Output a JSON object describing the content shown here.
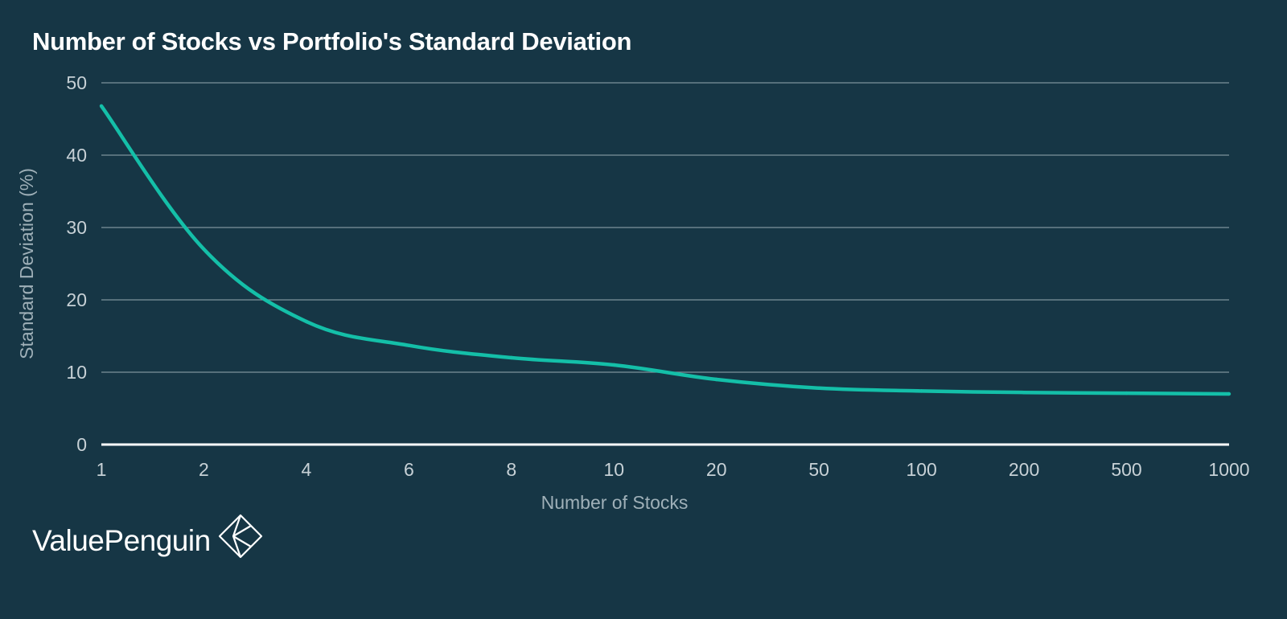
{
  "chart_data": {
    "type": "line",
    "title": "Number of Stocks vs Portfolio's Standard Deviation",
    "xlabel": "Number of Stocks",
    "ylabel": "Standard Deviation (%)",
    "categories": [
      "1",
      "2",
      "4",
      "6",
      "8",
      "10",
      "20",
      "50",
      "100",
      "200",
      "500",
      "1000"
    ],
    "values": [
      46.8,
      27.0,
      17.0,
      13.7,
      12.0,
      11.0,
      9.0,
      7.8,
      7.4,
      7.2,
      7.1,
      7.0
    ],
    "yticks": [
      0,
      10,
      20,
      30,
      40,
      50
    ],
    "ylim": [
      0,
      50
    ],
    "grid": true,
    "line_color": "#14bfa8"
  },
  "brand": {
    "name": "ValuePenguin"
  },
  "colors": {
    "background": "#163645",
    "gridline": "#7e939c",
    "baseline": "#ffffff",
    "series": "#14bfa8"
  }
}
